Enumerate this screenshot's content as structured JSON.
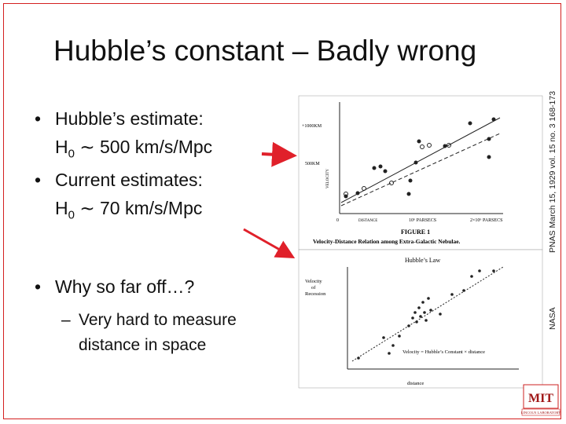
{
  "header": {
    "title": "Hubble’s constant – Badly wrong"
  },
  "bullets": [
    {
      "label": "Hubble’s estimate:",
      "formula": {
        "symbol": "H",
        "subscript": "0",
        "rest": " ∼ 500 km/s/Mpc"
      }
    },
    {
      "label": "Current estimates:",
      "formula": {
        "symbol": "H",
        "subscript": "0",
        "rest": " ∼ 70 km/s/Mpc"
      }
    },
    {
      "label": "Why so far off…?",
      "sub": [
        "Very hard to measure",
        "distance in space"
      ]
    }
  ],
  "figures": [
    {
      "credit": "PNAS March 15, 1929 vol. 15 no. 3 168-173",
      "y_label": "VELOCITY",
      "y_ticks": [
        "+1000KM",
        "500KM"
      ],
      "x_label": "DISTANCE",
      "x_ticks": [
        "0",
        "10⁶ PARSECS",
        "2×10⁶ PARSECS"
      ],
      "caption": "FIGURE 1",
      "caption_text": "Velocity-Distance Relation among Extra-Galactic Nebulae."
    },
    {
      "credit": "NASA",
      "title": "Hubble’s Law",
      "y_label": [
        "Velocity",
        "of",
        "Recession"
      ],
      "equation": "Velocity = Hubble’s Constant × distance",
      "x_label": "distance"
    }
  ],
  "logo": {
    "mark": "MIT",
    "text": "LINCOLN LABORATORY"
  }
}
